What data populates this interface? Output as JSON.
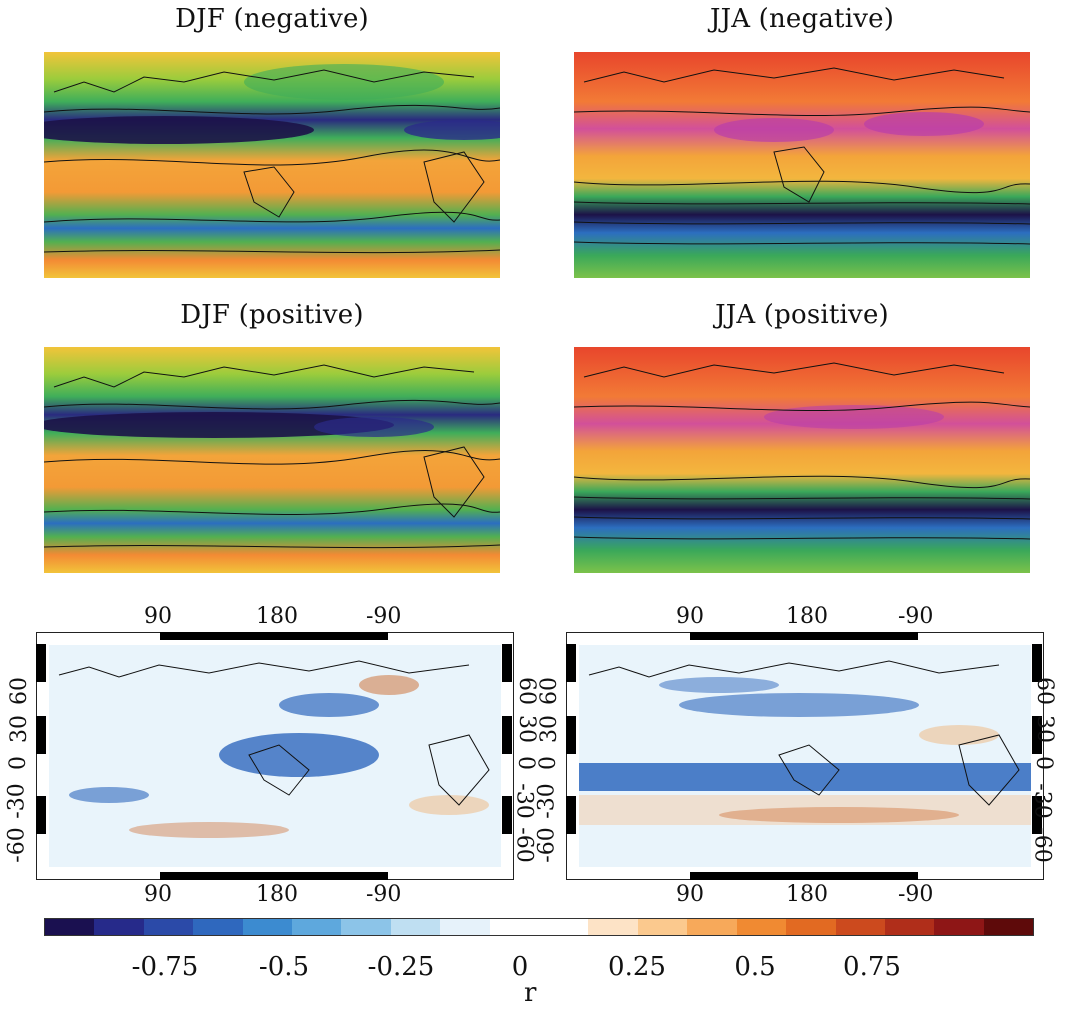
{
  "panels": {
    "djf_negative": {
      "title": "DJF (negative)"
    },
    "jja_negative": {
      "title": "JJA (negative)"
    },
    "djf_positive": {
      "title": "DJF (positive)"
    },
    "jja_positive": {
      "title": "JJA (positive)"
    }
  },
  "correlation_maps": {
    "lon_ticks": [
      "90",
      "180",
      "-90"
    ],
    "lat_ticks_left": [
      "60",
      "30",
      "0",
      "-30",
      "-60"
    ],
    "lat_ticks_right": [
      "60",
      "30",
      "0",
      "-30",
      "-60"
    ]
  },
  "colorbar": {
    "label": "r",
    "ticks": [
      "-0.75",
      "-0.5",
      "-0.25",
      "0",
      "0.25",
      "0.5",
      "0.75"
    ],
    "colors": [
      "#1a1050",
      "#262a8a",
      "#2b4aa8",
      "#2f68be",
      "#3c8bd0",
      "#5ea8dd",
      "#8cc4e8",
      "#bfdff2",
      "#e6f2fa",
      "#ffffff",
      "#ffffff",
      "#fde3c6",
      "#fbc98e",
      "#f7a95a",
      "#f08a32",
      "#e26a22",
      "#cc4a1e",
      "#b02e1a",
      "#8e1616",
      "#5e0a0a"
    ]
  }
}
